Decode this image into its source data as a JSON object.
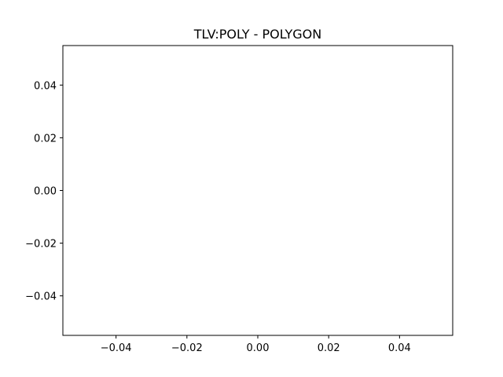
{
  "chart_data": {
    "type": "scatter",
    "title": "TLV:POLY - POLYGON",
    "xlabel": "",
    "ylabel": "",
    "xlim": [
      -0.055,
      0.055
    ],
    "ylim": [
      -0.055,
      0.055
    ],
    "x_ticks": [
      -0.04,
      -0.02,
      0.0,
      0.02,
      0.04
    ],
    "y_ticks": [
      -0.04,
      -0.02,
      0.0,
      0.02,
      0.04
    ],
    "x_tick_labels": [
      "−0.04",
      "−0.02",
      "0.00",
      "0.02",
      "0.04"
    ],
    "y_tick_labels": [
      "−0.04",
      "−0.02",
      "0.00",
      "0.02",
      "0.04"
    ],
    "grid": false,
    "series": []
  }
}
